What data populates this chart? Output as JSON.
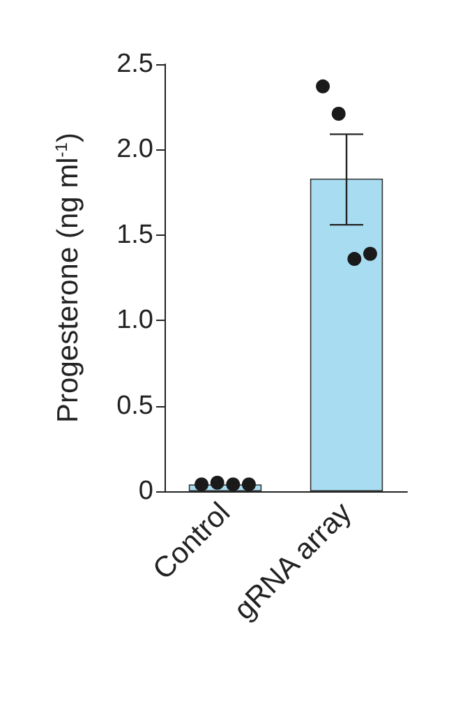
{
  "chart_data": {
    "type": "bar",
    "ylabel": "Progesterone (ng ml$^{-1}$)",
    "categories": [
      "Control",
      "gRNA array"
    ],
    "series": [
      {
        "color": "#a8dcf0",
        "values": [
          0.04,
          1.83
        ],
        "errors": [
          null,
          [
            1.56,
            2.09
          ]
        ]
      },
      {
        "type": "scatter",
        "color": "#1a1a1a",
        "x": [
          "Control",
          "Control",
          "Control",
          "Control",
          "gRNA array",
          "gRNA array",
          "gRNA array",
          "gRNA array"
        ],
        "values": [
          0.04,
          0.05,
          0.04,
          0.04,
          2.37,
          2.21,
          1.36,
          1.39
        ],
        "marker": "circle"
      }
    ],
    "ylim": [
      0,
      2.5
    ],
    "yticks": [
      0,
      {
        "value": 0.5,
        "label": "0.5"
      },
      {
        "value": 1,
        "label": "1.0"
      },
      {
        "value": 1.5,
        "label": "1.5"
      },
      {
        "value": 2,
        "label": "2.0"
      },
      {
        "value": 2.5,
        "label": "2.5"
      }
    ]
  }
}
